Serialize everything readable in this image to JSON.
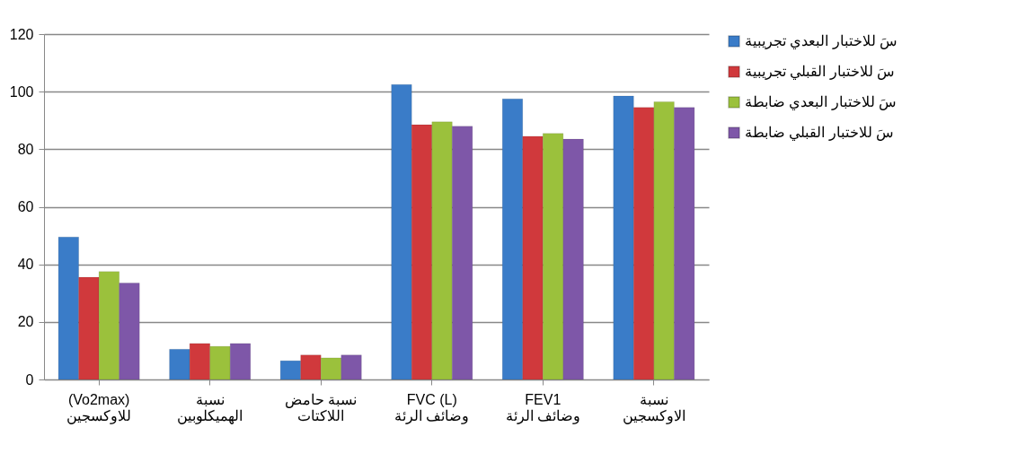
{
  "chart_data": {
    "type": "bar",
    "categories": [
      "(Vo2max)\nللاوكسجين",
      "نسبة\nالهميكلوبين",
      "نسبة حامض\nاللاكتات",
      "FVC (L)\nوضائف الرئة",
      "FEV1\nوضائف الرئة",
      "نسبة\nالاوكسجين"
    ],
    "series": [
      {
        "name": "سَ للاختبار البعدي تجريبية",
        "color": "#3a7cc8",
        "values": [
          49.5,
          10.5,
          6.5,
          102.5,
          97.5,
          98.5
        ]
      },
      {
        "name": "سَ للاختبار القبلي تجريبية",
        "color": "#d0393c",
        "values": [
          35.5,
          12.5,
          8.5,
          88.5,
          84.5,
          94.5
        ]
      },
      {
        "name": "سَ للاختبار البعدي ضابطة",
        "color": "#9bc13c",
        "values": [
          37.5,
          11.5,
          7.5,
          89.5,
          85.5,
          96.5
        ]
      },
      {
        "name": "سَ للاختبار القبلي ضابطة",
        "color": "#7e57a8",
        "values": [
          33.5,
          12.5,
          8.5,
          88,
          83.5,
          94.5
        ]
      }
    ],
    "ylim": [
      0,
      120
    ],
    "yticks": [
      0,
      20,
      40,
      60,
      80,
      100,
      120
    ],
    "grid": "y",
    "legend": "right"
  }
}
